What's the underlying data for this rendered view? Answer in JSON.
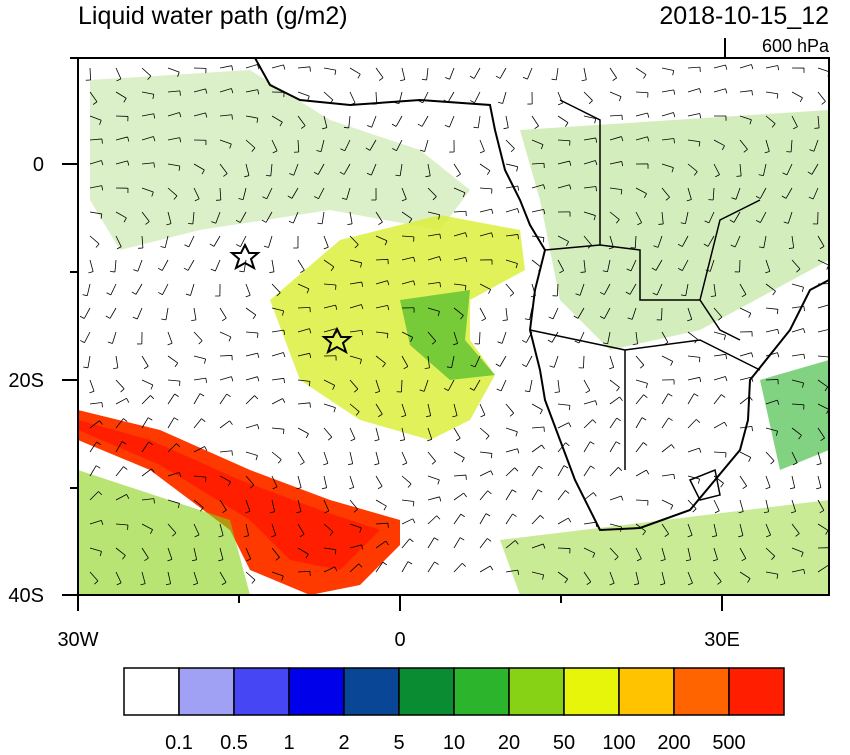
{
  "header": {
    "title": "Liquid water path (g/m2)",
    "date": "2018-10-15_12",
    "level": "600 hPa"
  },
  "map": {
    "lat_labels": [
      "0",
      "20S",
      "40S"
    ],
    "lon_labels": [
      "30W",
      "0",
      "30E"
    ]
  },
  "colorbar": {
    "colors": [
      "#ffffff",
      "#a0a0f5",
      "#4646f5",
      "#0000eb",
      "#0a4696",
      "#0a8c32",
      "#2db42d",
      "#87d214",
      "#e6f50a",
      "#ffc300",
      "#ff6400",
      "#ff1e00"
    ],
    "labels": [
      0.1,
      0.5,
      1,
      2,
      5,
      10,
      20,
      50,
      100,
      200,
      500
    ]
  }
}
